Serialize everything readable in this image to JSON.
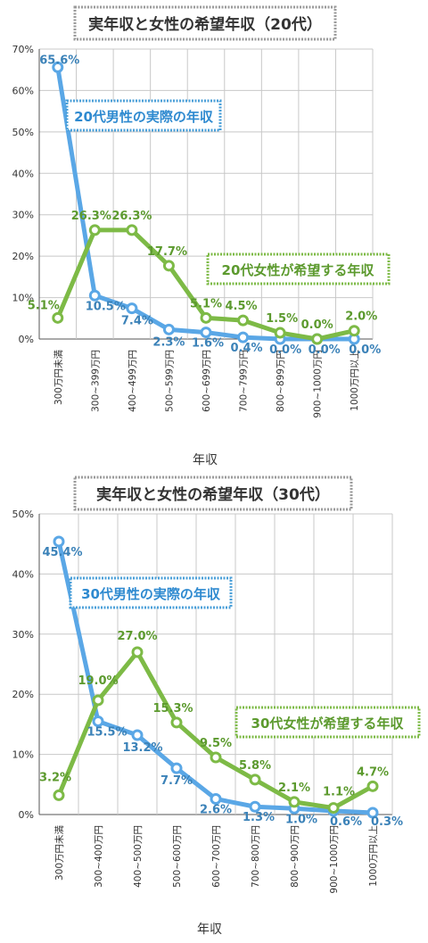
{
  "chart_data": [
    {
      "type": "line",
      "title": "実年収と女性の希望年収（20代）",
      "xlabel": "年収",
      "ylabel": "",
      "ylim": [
        0,
        70
      ],
      "yticks": [
        "0%",
        "10%",
        "20%",
        "30%",
        "40%",
        "50%",
        "60%",
        "70%"
      ],
      "grid": true,
      "categories": [
        "300万円未満",
        "300~399万円",
        "400~499万円",
        "500~599万円",
        "600~699万円",
        "700~799万円",
        "800~899万円",
        "900~1000万円",
        "1000万円以上"
      ],
      "series": [
        {
          "name": "20代男性の実際の年収",
          "color": "#5aa7e6",
          "label_color": "#3b82b8",
          "values": [
            65.6,
            10.5,
            7.4,
            2.3,
            1.6,
            0.4,
            0.0,
            0.0,
            0.0
          ],
          "labels": [
            "65.6%",
            "10.5%",
            "7.4%",
            "2.3%",
            "1.6%",
            "0.4%",
            "0.0%",
            "0.0%",
            "0.0%"
          ]
        },
        {
          "name": "20代女性が希望する年収",
          "color": "#7dba46",
          "label_color": "#5c9a2e",
          "values": [
            5.1,
            26.3,
            26.3,
            17.7,
            5.1,
            4.5,
            1.5,
            0.0,
            2.0
          ],
          "labels": [
            "5.1%",
            "26.3%",
            "26.3%",
            "17.7%",
            "5.1%",
            "4.5%",
            "1.5%",
            "0.0%",
            "2.0%"
          ]
        }
      ]
    },
    {
      "type": "line",
      "title": "実年収と女性の希望年収（30代）",
      "xlabel": "年収",
      "ylabel": "",
      "ylim": [
        0,
        50
      ],
      "yticks": [
        "0%",
        "10%",
        "20%",
        "30%",
        "40%",
        "50%"
      ],
      "grid": true,
      "categories": [
        "300万円未満",
        "300~400万円",
        "400~500万円",
        "500~600万円",
        "600~700万円",
        "700~800万円",
        "800~900万円",
        "900~1000万円",
        "1000万円以上"
      ],
      "series": [
        {
          "name": "30代男性の実際の年収",
          "color": "#5aa7e6",
          "label_color": "#3b82b8",
          "values": [
            45.4,
            15.5,
            13.2,
            7.7,
            2.6,
            1.3,
            1.0,
            0.6,
            0.3
          ],
          "labels": [
            "45.4%",
            "15.5%",
            "13.2%",
            "7.7%",
            "2.6%",
            "1.3%",
            "1.0%",
            "0.6%",
            "0.3%"
          ]
        },
        {
          "name": "30代女性が希望する年収",
          "color": "#7dba46",
          "label_color": "#5c9a2e",
          "values": [
            3.2,
            19.0,
            27.0,
            15.3,
            9.5,
            5.8,
            2.1,
            1.1,
            4.7
          ],
          "labels": [
            "3.2%",
            "19.0%",
            "27.0%",
            "15.3%",
            "9.5%",
            "5.8%",
            "2.1%",
            "1.1%",
            "4.7%"
          ]
        }
      ]
    }
  ]
}
